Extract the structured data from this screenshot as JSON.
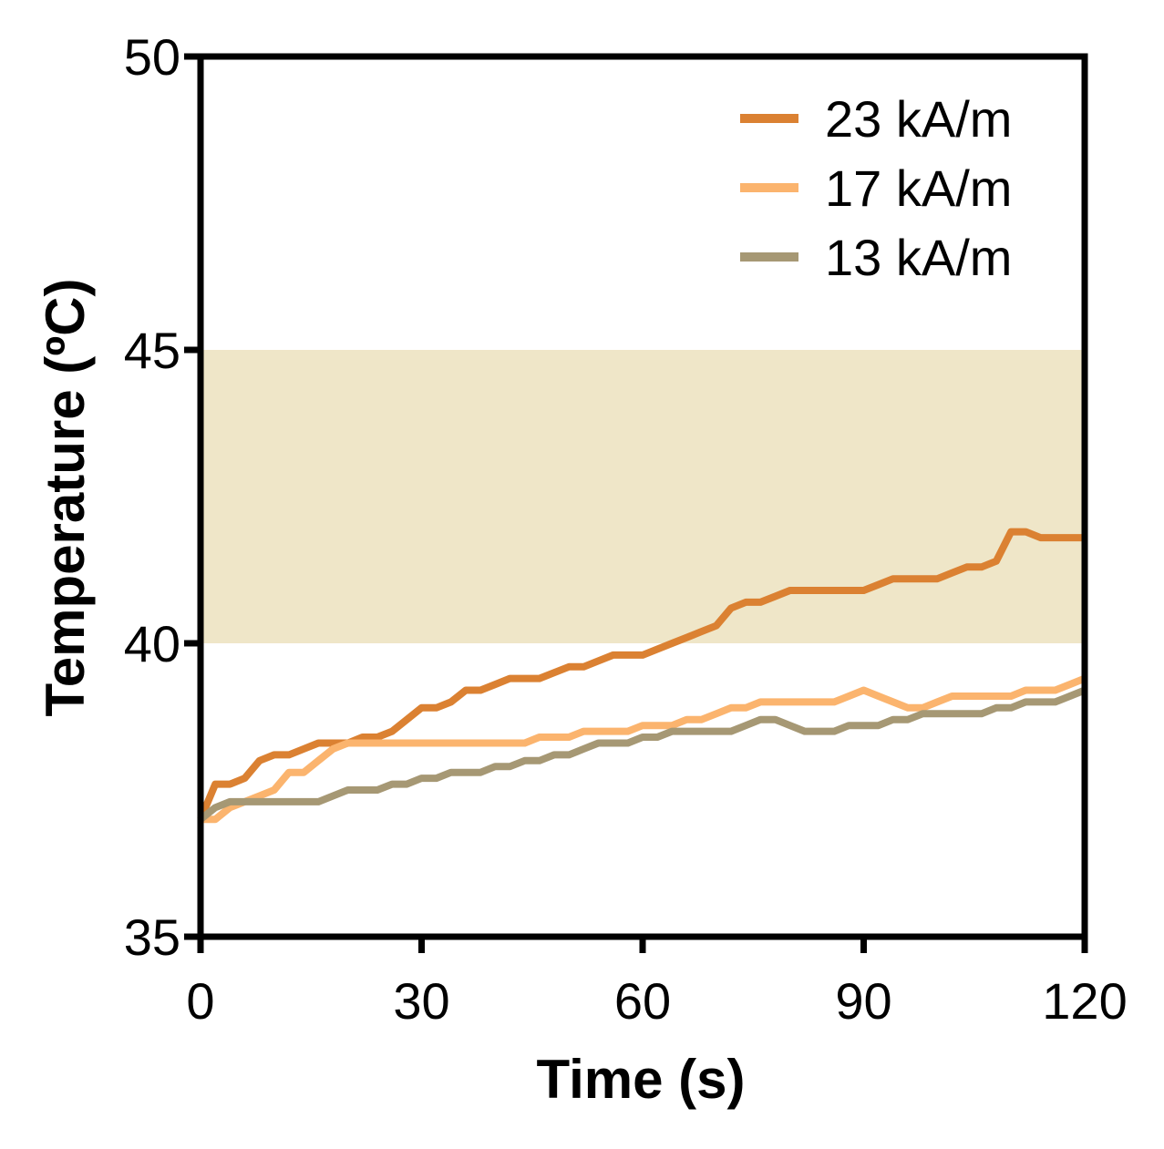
{
  "chart_data": {
    "type": "line",
    "xlabel": "Time (s)",
    "ylabel": "Temperature (ºC)",
    "xlim": [
      0,
      120
    ],
    "ylim": [
      35,
      50
    ],
    "xticks": [
      0,
      30,
      60,
      90,
      120
    ],
    "yticks": [
      35,
      40,
      45,
      50
    ],
    "x_tick_labels": [
      "0",
      "30",
      "60",
      "90",
      "120"
    ],
    "y_tick_labels": [
      "35",
      "40",
      "45",
      "50"
    ],
    "grid": false,
    "legend_position": "top-right",
    "shaded_band": {
      "y_from": 40,
      "y_to": 45,
      "color": "#efe6c8"
    },
    "series": [
      {
        "name": "23 kA/m",
        "color": "#db8132",
        "x": [
          0,
          2,
          4,
          6,
          8,
          10,
          12,
          14,
          16,
          18,
          20,
          22,
          24,
          26,
          28,
          30,
          32,
          34,
          36,
          38,
          40,
          42,
          44,
          46,
          48,
          50,
          52,
          54,
          56,
          58,
          60,
          62,
          64,
          66,
          68,
          70,
          72,
          74,
          76,
          78,
          80,
          82,
          84,
          86,
          88,
          90,
          92,
          94,
          96,
          98,
          100,
          102,
          104,
          106,
          108,
          110,
          112,
          114,
          116,
          118,
          120
        ],
        "y": [
          37.0,
          37.6,
          37.6,
          37.7,
          38.0,
          38.1,
          38.1,
          38.2,
          38.3,
          38.3,
          38.3,
          38.4,
          38.4,
          38.5,
          38.7,
          38.9,
          38.9,
          39.0,
          39.2,
          39.2,
          39.3,
          39.4,
          39.4,
          39.4,
          39.5,
          39.6,
          39.6,
          39.7,
          39.8,
          39.8,
          39.8,
          39.9,
          40.0,
          40.1,
          40.2,
          40.3,
          40.6,
          40.7,
          40.7,
          40.8,
          40.9,
          40.9,
          40.9,
          40.9,
          40.9,
          40.9,
          41.0,
          41.1,
          41.1,
          41.1,
          41.1,
          41.2,
          41.3,
          41.3,
          41.4,
          41.9,
          41.9,
          41.8,
          41.8,
          41.8,
          41.8
        ]
      },
      {
        "name": "17 kA/m",
        "color": "#fbb46e",
        "x": [
          0,
          2,
          4,
          6,
          8,
          10,
          12,
          14,
          16,
          18,
          20,
          22,
          24,
          26,
          28,
          30,
          32,
          34,
          36,
          38,
          40,
          42,
          44,
          46,
          48,
          50,
          52,
          54,
          56,
          58,
          60,
          62,
          64,
          66,
          68,
          70,
          72,
          74,
          76,
          78,
          80,
          82,
          84,
          86,
          88,
          90,
          92,
          94,
          96,
          98,
          100,
          102,
          104,
          106,
          108,
          110,
          112,
          114,
          116,
          118,
          120
        ],
        "y": [
          37.0,
          37.0,
          37.2,
          37.3,
          37.4,
          37.5,
          37.8,
          37.8,
          38.0,
          38.2,
          38.3,
          38.3,
          38.3,
          38.3,
          38.3,
          38.3,
          38.3,
          38.3,
          38.3,
          38.3,
          38.3,
          38.3,
          38.3,
          38.4,
          38.4,
          38.4,
          38.5,
          38.5,
          38.5,
          38.5,
          38.6,
          38.6,
          38.6,
          38.7,
          38.7,
          38.8,
          38.9,
          38.9,
          39.0,
          39.0,
          39.0,
          39.0,
          39.0,
          39.0,
          39.1,
          39.2,
          39.1,
          39.0,
          38.9,
          38.9,
          39.0,
          39.1,
          39.1,
          39.1,
          39.1,
          39.1,
          39.2,
          39.2,
          39.2,
          39.3,
          39.4
        ]
      },
      {
        "name": "13 kA/m",
        "color": "#a69874",
        "x": [
          0,
          2,
          4,
          6,
          8,
          10,
          12,
          14,
          16,
          18,
          20,
          22,
          24,
          26,
          28,
          30,
          32,
          34,
          36,
          38,
          40,
          42,
          44,
          46,
          48,
          50,
          52,
          54,
          56,
          58,
          60,
          62,
          64,
          66,
          68,
          70,
          72,
          74,
          76,
          78,
          80,
          82,
          84,
          86,
          88,
          90,
          92,
          94,
          96,
          98,
          100,
          102,
          104,
          106,
          108,
          110,
          112,
          114,
          116,
          118,
          120
        ],
        "y": [
          37.0,
          37.2,
          37.3,
          37.3,
          37.3,
          37.3,
          37.3,
          37.3,
          37.3,
          37.4,
          37.5,
          37.5,
          37.5,
          37.6,
          37.6,
          37.7,
          37.7,
          37.8,
          37.8,
          37.8,
          37.9,
          37.9,
          38.0,
          38.0,
          38.1,
          38.1,
          38.2,
          38.3,
          38.3,
          38.3,
          38.4,
          38.4,
          38.5,
          38.5,
          38.5,
          38.5,
          38.5,
          38.6,
          38.7,
          38.7,
          38.6,
          38.5,
          38.5,
          38.5,
          38.6,
          38.6,
          38.6,
          38.7,
          38.7,
          38.8,
          38.8,
          38.8,
          38.8,
          38.8,
          38.9,
          38.9,
          39.0,
          39.0,
          39.0,
          39.1,
          39.2
        ]
      }
    ]
  }
}
